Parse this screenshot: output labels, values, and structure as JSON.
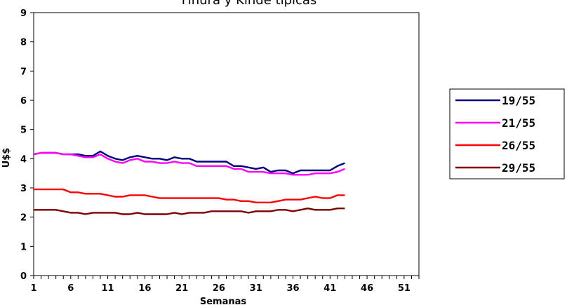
{
  "chart_data": {
    "type": "line",
    "title": "Finura y Kinde típicas",
    "xlabel": "Semanas",
    "ylabel": "U$$",
    "xlim": [
      1,
      53
    ],
    "ylim": [
      0,
      9
    ],
    "x_ticks": [
      "1",
      "6",
      "11",
      "16",
      "21",
      "26",
      "31",
      "36",
      "41",
      "46",
      "51"
    ],
    "y_ticks": [
      "0",
      "1",
      "2",
      "3",
      "4",
      "5",
      "6",
      "7",
      "8",
      "9"
    ],
    "grid": false,
    "legend_position": "right",
    "x": [
      1,
      2,
      3,
      4,
      5,
      6,
      7,
      8,
      9,
      10,
      11,
      12,
      13,
      14,
      15,
      16,
      17,
      18,
      19,
      20,
      21,
      22,
      23,
      24,
      25,
      26,
      27,
      28,
      29,
      30,
      31,
      32,
      33,
      34,
      35,
      36,
      37,
      38,
      39,
      40,
      41,
      42,
      43
    ],
    "series": [
      {
        "name": "19/55",
        "color": "#000080",
        "values": [
          4.15,
          4.2,
          4.2,
          4.2,
          4.15,
          4.15,
          4.15,
          4.1,
          4.1,
          4.25,
          4.1,
          4.0,
          3.95,
          4.05,
          4.1,
          4.05,
          4.0,
          4.0,
          3.95,
          4.05,
          4.0,
          4.0,
          3.9,
          3.9,
          3.9,
          3.9,
          3.9,
          3.75,
          3.75,
          3.7,
          3.65,
          3.7,
          3.55,
          3.6,
          3.6,
          3.5,
          3.6,
          3.6,
          3.6,
          3.6,
          3.6,
          3.75,
          3.85
        ]
      },
      {
        "name": "21/55",
        "color": "#FF00FF",
        "values": [
          4.15,
          4.2,
          4.2,
          4.2,
          4.15,
          4.15,
          4.1,
          4.05,
          4.05,
          4.15,
          4.0,
          3.9,
          3.85,
          3.95,
          4.0,
          3.9,
          3.9,
          3.85,
          3.85,
          3.9,
          3.85,
          3.85,
          3.75,
          3.75,
          3.75,
          3.75,
          3.75,
          3.65,
          3.65,
          3.55,
          3.55,
          3.55,
          3.5,
          3.5,
          3.5,
          3.45,
          3.45,
          3.45,
          3.5,
          3.5,
          3.5,
          3.55,
          3.65
        ]
      },
      {
        "name": "26/55",
        "color": "#FF0000",
        "values": [
          2.95,
          2.95,
          2.95,
          2.95,
          2.95,
          2.85,
          2.85,
          2.8,
          2.8,
          2.8,
          2.75,
          2.7,
          2.7,
          2.75,
          2.75,
          2.75,
          2.7,
          2.65,
          2.65,
          2.65,
          2.65,
          2.65,
          2.65,
          2.65,
          2.65,
          2.65,
          2.6,
          2.6,
          2.55,
          2.55,
          2.5,
          2.5,
          2.5,
          2.55,
          2.6,
          2.6,
          2.6,
          2.65,
          2.7,
          2.65,
          2.65,
          2.75,
          2.75
        ]
      },
      {
        "name": "29/55",
        "color": "#800000",
        "values": [
          2.25,
          2.25,
          2.25,
          2.25,
          2.2,
          2.15,
          2.15,
          2.1,
          2.15,
          2.15,
          2.15,
          2.15,
          2.1,
          2.1,
          2.15,
          2.1,
          2.1,
          2.1,
          2.1,
          2.15,
          2.1,
          2.15,
          2.15,
          2.15,
          2.2,
          2.2,
          2.2,
          2.2,
          2.2,
          2.15,
          2.2,
          2.2,
          2.2,
          2.25,
          2.25,
          2.2,
          2.25,
          2.3,
          2.25,
          2.25,
          2.25,
          2.3,
          2.3
        ]
      }
    ]
  }
}
